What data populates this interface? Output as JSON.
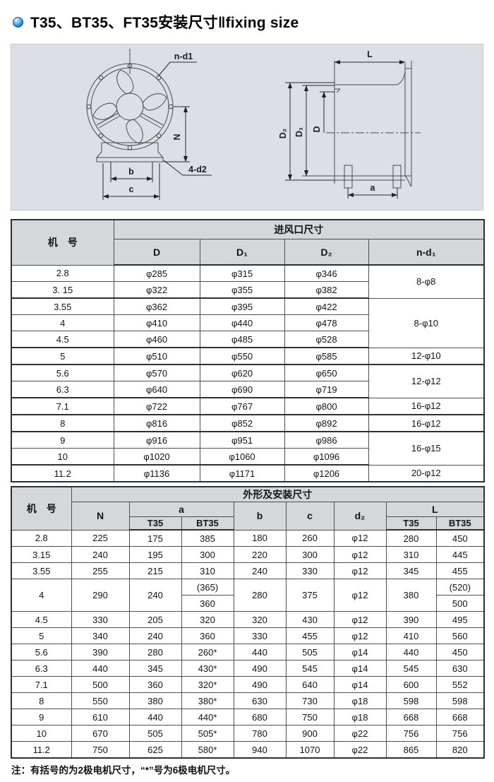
{
  "title": {
    "text": "T35、BT35、FT35安装尺寸‖fixing size"
  },
  "diagram": {
    "front_view_labels": {
      "n_d1": "n-d1",
      "N": "N",
      "b": "b",
      "c": "c",
      "four_d2": "4-d2"
    },
    "side_view_labels": {
      "L": "L",
      "D2": "D₂",
      "D1": "D₁",
      "D": "D",
      "a": "a"
    }
  },
  "table1": {
    "machine_col": "机　号",
    "group_header": "进风口尺寸",
    "columns": {
      "D": "D",
      "D1": "D₁",
      "D2": "D₂",
      "n_d1": "n-d₁"
    },
    "rows": [
      {
        "model": "2.8",
        "D": "φ285",
        "D1": "φ315",
        "D2": "φ346"
      },
      {
        "model": "3. 15",
        "D": "φ322",
        "D1": "φ355",
        "D2": "φ382"
      },
      {
        "model": "3.55",
        "D": "φ362",
        "D1": "φ395",
        "D2": "φ422"
      },
      {
        "model": "4",
        "D": "φ410",
        "D1": "φ440",
        "D2": "φ478"
      },
      {
        "model": "4.5",
        "D": "φ460",
        "D1": "φ485",
        "D2": "φ528"
      },
      {
        "model": "5",
        "D": "φ510",
        "D1": "φ550",
        "D2": "φ585"
      },
      {
        "model": "5.6",
        "D": "φ570",
        "D1": "φ620",
        "D2": "φ650"
      },
      {
        "model": "6.3",
        "D": "φ640",
        "D1": "φ690",
        "D2": "φ719"
      },
      {
        "model": "7.1",
        "D": "φ722",
        "D1": "φ767",
        "D2": "φ800"
      },
      {
        "model": "8",
        "D": "φ816",
        "D1": "φ852",
        "D2": "φ892"
      },
      {
        "model": "9",
        "D": "φ916",
        "D1": "φ951",
        "D2": "φ986"
      },
      {
        "model": "10",
        "D": "φ1020",
        "D1": "φ1060",
        "D2": "φ1096"
      },
      {
        "model": "11.2",
        "D": "φ1136",
        "D1": "φ1171",
        "D2": "φ1206"
      }
    ],
    "nd1_groups": [
      {
        "span": 2,
        "value": "8-φ8"
      },
      {
        "span": 3,
        "value": "8-φ10"
      },
      {
        "span": 1,
        "value": "12-φ10"
      },
      {
        "span": 2,
        "value": "12-φ12"
      },
      {
        "span": 1,
        "value": "16-φ12"
      },
      {
        "span": 1,
        "value": "16-φ12"
      },
      {
        "span": 2,
        "value": "16-φ15"
      },
      {
        "span": 1,
        "value": "20-φ12"
      }
    ]
  },
  "table2": {
    "machine_col": "机　号",
    "group_header": "外形及安装尺寸",
    "columns": {
      "N": "N",
      "a": "a",
      "b": "b",
      "c": "c",
      "d2": "d₂",
      "L": "L"
    },
    "sub_columns": {
      "a_t35": "T35",
      "a_bt35": "BT35",
      "l_t35": "T35",
      "l_bt35": "BT35"
    },
    "rows": [
      [
        "2.8",
        "225",
        "175",
        "385",
        "180",
        "260",
        "φ12",
        "280",
        "450"
      ],
      [
        "3.15",
        "240",
        "195",
        "300",
        "220",
        "300",
        "φ12",
        "310",
        "445"
      ],
      [
        "3.55",
        "255",
        "215",
        "310",
        "240",
        "330",
        "φ12",
        "345",
        "455"
      ],
      [
        "4",
        "290",
        "240",
        [
          "(365)",
          "360"
        ],
        "280",
        "375",
        "φ12",
        "380",
        [
          "(520)",
          "500"
        ]
      ],
      [
        "4.5",
        "330",
        "205",
        "320",
        "320",
        "430",
        "φ12",
        "390",
        "495"
      ],
      [
        "5",
        "340",
        "240",
        "360",
        "330",
        "455",
        "φ12",
        "410",
        "560"
      ],
      [
        "5.6",
        "390",
        "280",
        "260*",
        "440",
        "505",
        "φ14",
        "440",
        "450"
      ],
      [
        "6.3",
        "440",
        "345",
        "430*",
        "490",
        "545",
        "φ14",
        "545",
        "630"
      ],
      [
        "7.1",
        "500",
        "360",
        "320*",
        "490",
        "640",
        "φ14",
        "600",
        "552"
      ],
      [
        "8",
        "550",
        "380",
        "380*",
        "630",
        "730",
        "φ18",
        "598",
        "598"
      ],
      [
        "9",
        "610",
        "440",
        "440*",
        "680",
        "750",
        "φ18",
        "668",
        "668"
      ],
      [
        "10",
        "670",
        "505",
        "505*",
        "780",
        "900",
        "φ22",
        "756",
        "756"
      ],
      [
        "11.2",
        "750",
        "625",
        "580*",
        "940",
        "1070",
        "φ22",
        "865",
        "820"
      ]
    ]
  },
  "note": "注：有括号的为2极电机尺寸，“*”号为6极电机尺寸。"
}
